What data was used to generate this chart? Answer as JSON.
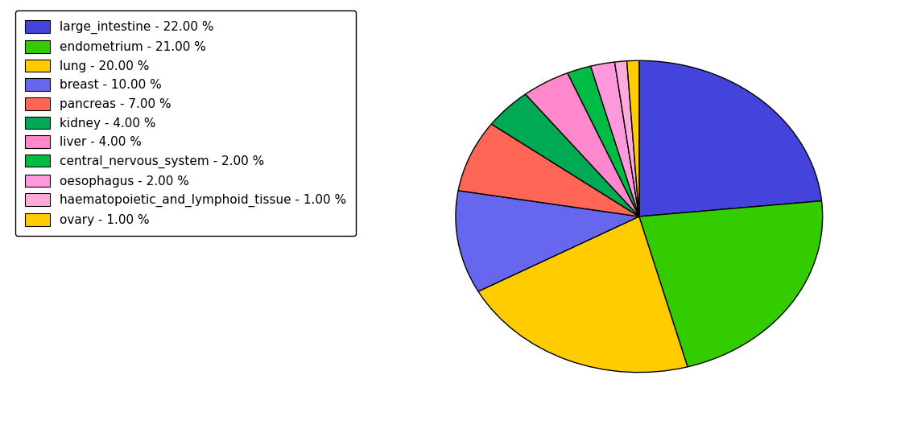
{
  "labels": [
    "large_intestine - 22.00 %",
    "endometrium - 21.00 %",
    "lung - 20.00 %",
    "breast - 10.00 %",
    "pancreas - 7.00 %",
    "kidney - 4.00 %",
    "liver - 4.00 %",
    "central_nervous_system - 2.00 %",
    "oesophagus - 2.00 %",
    "haematopoietic_and_lymphoid_tissue - 1.00 %",
    "ovary - 1.00 %"
  ],
  "values": [
    22,
    21,
    20,
    10,
    7,
    4,
    4,
    2,
    2,
    1,
    1
  ],
  "colors": [
    "#4444dd",
    "#33cc00",
    "#ffcc00",
    "#6666ee",
    "#ff6655",
    "#00aa55",
    "#ff88cc",
    "#00bb44",
    "#ff99dd",
    "#ffaadd",
    "#ffcc00"
  ],
  "startangle": 90,
  "background_color": "#ffffff"
}
